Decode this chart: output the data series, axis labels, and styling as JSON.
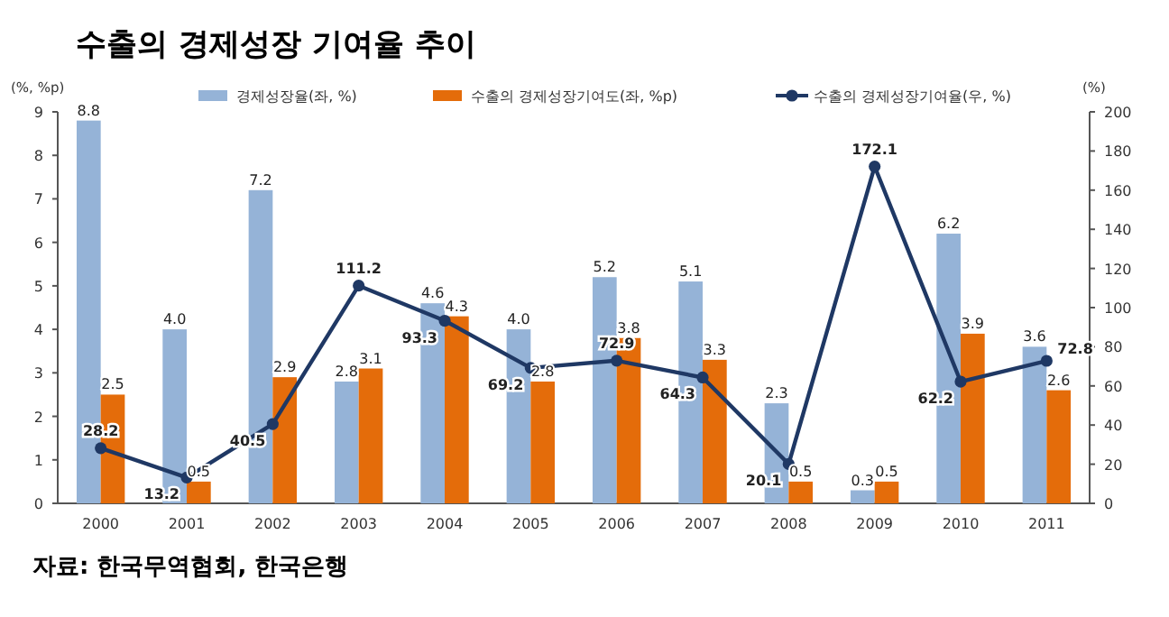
{
  "chart_data": {
    "type": "bar",
    "title": "수출의 경제성장 기여율 추이",
    "ylabel": "(%, %p)",
    "y2label": "(%)",
    "annotations": [
      "자료: 한국무역협회, 한국은행"
    ],
    "categories": [
      "2000",
      "2001",
      "2002",
      "2003",
      "2004",
      "2005",
      "2006",
      "2007",
      "2008",
      "2009",
      "2010",
      "2011"
    ],
    "series": [
      {
        "name": "경제성장율(좌, %)",
        "color": "#95b3d7",
        "values": [
          8.8,
          4.0,
          7.2,
          2.8,
          4.6,
          4.0,
          5.2,
          5.1,
          2.3,
          0.3,
          6.2,
          3.6
        ],
        "value_labels": [
          "8.8",
          "4.0",
          "7.2",
          "2.8",
          "4.6",
          "4.0",
          "5.2",
          "5.1",
          "2.3",
          "0.3",
          "6.2",
          "3.6"
        ]
      },
      {
        "name": "수출의 경제성장기여도(좌, %p)",
        "color": "#e46c0a",
        "values": [
          2.5,
          0.5,
          2.9,
          3.1,
          4.3,
          2.8,
          3.8,
          3.3,
          0.5,
          0.5,
          3.9,
          2.6
        ],
        "value_labels": [
          "2.5",
          "0.5",
          "2.9",
          "3.1",
          "4.3",
          "2.8",
          "3.8",
          "3.3",
          "0.5",
          "0.5",
          "3.9",
          "2.6"
        ]
      },
      {
        "name": "수출의 경제성장기여율(우, %)",
        "type": "line",
        "axis": "y2",
        "color": "#1f3864",
        "values": [
          28.2,
          13.2,
          40.5,
          111.2,
          93.3,
          69.2,
          72.9,
          64.3,
          20.1,
          172.1,
          62.2,
          72.8
        ],
        "value_labels": [
          "28.2",
          "13.2",
          "40.5",
          "111.2",
          "93.3",
          "69.2",
          "72.9",
          "64.3",
          "20.1",
          "172.1",
          "62.2",
          "72.8"
        ]
      }
    ],
    "ylim": [
      0,
      9
    ],
    "yticks": [
      0,
      1,
      2,
      3,
      4,
      5,
      6,
      7,
      8,
      9
    ],
    "y2lim": [
      0,
      200
    ],
    "y2ticks": [
      0,
      20,
      40,
      60,
      80,
      100,
      120,
      140,
      160,
      180,
      200
    ],
    "legend": "top",
    "marker": "circle",
    "line_style": "solid",
    "grid": false
  }
}
